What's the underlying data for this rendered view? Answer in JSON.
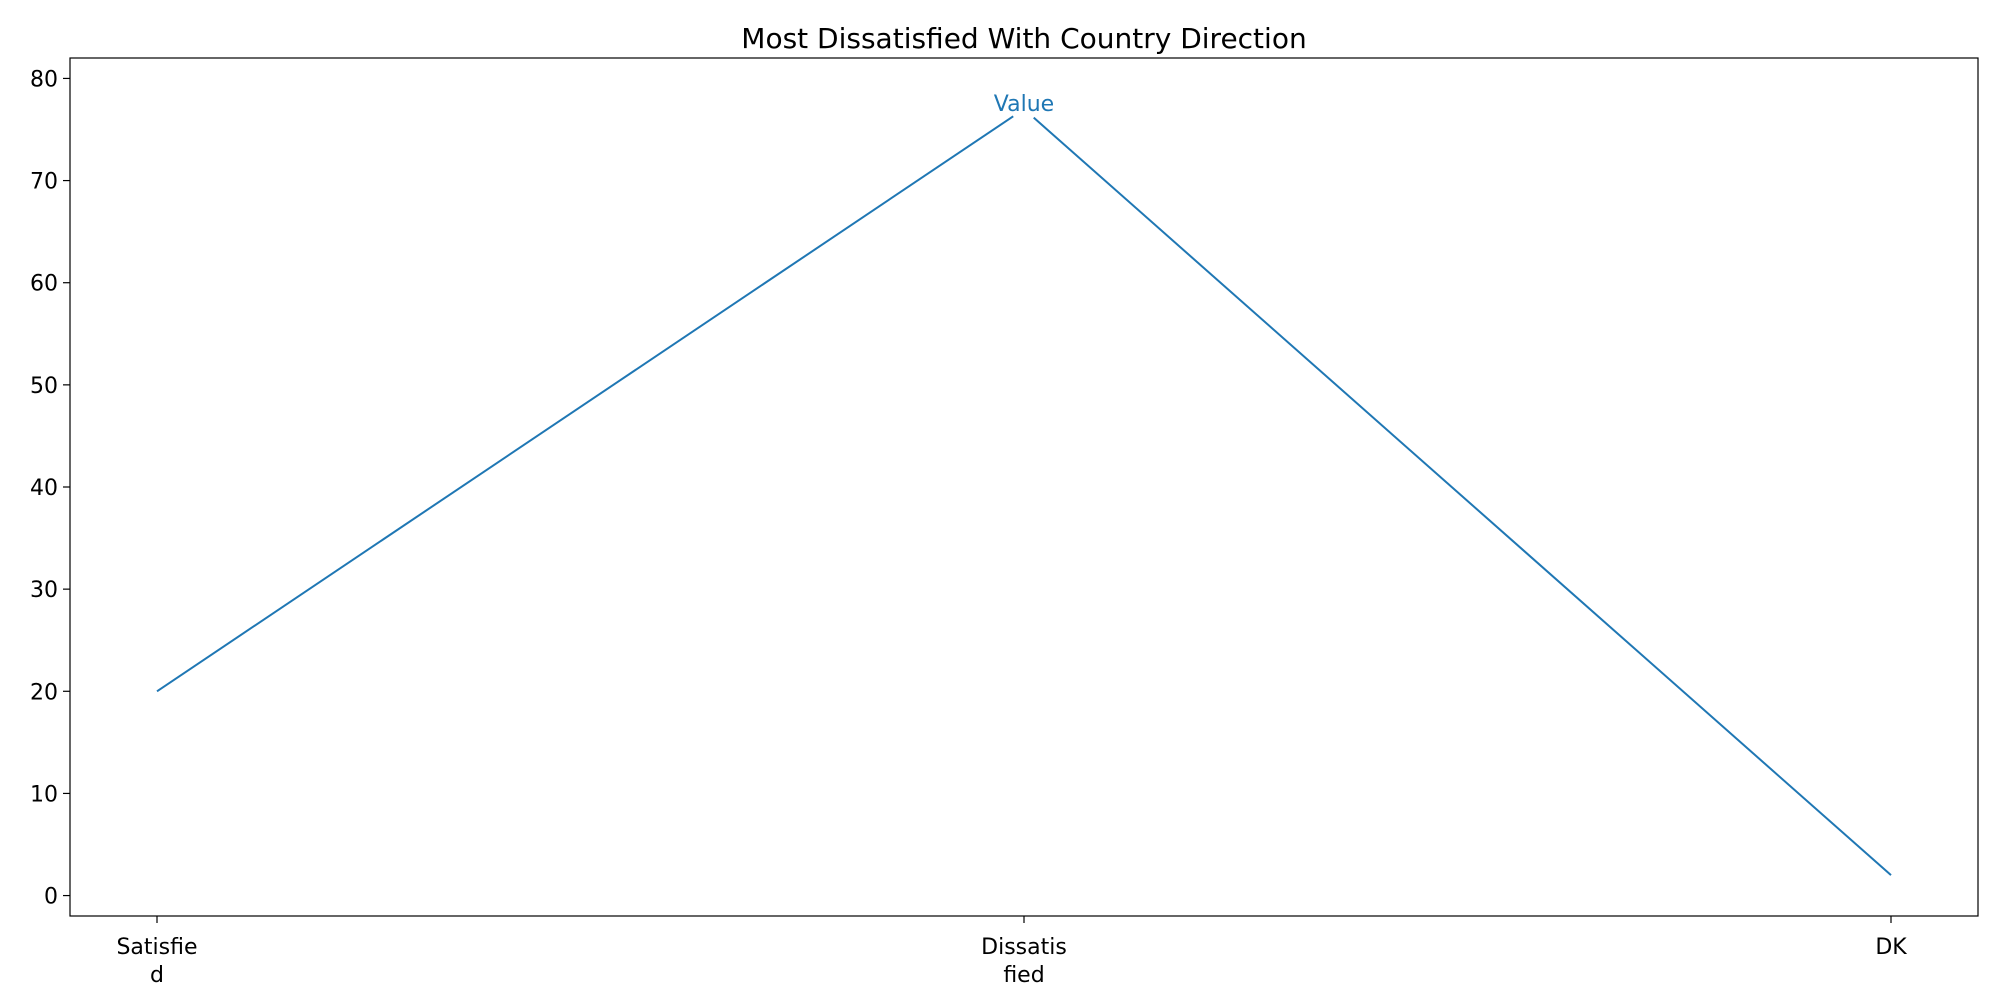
{
  "chart_data": {
    "type": "line",
    "title": "Most Dissatisfied With Country Direction",
    "xlabel": "",
    "ylabel": "",
    "categories": [
      [
        "Satisfie",
        "d"
      ],
      [
        "Dissatis",
        "fied"
      ],
      [
        "DK"
      ]
    ],
    "series": [
      {
        "name": "Value",
        "values": [
          20,
          77,
          2
        ],
        "color": "#1f77b4"
      }
    ],
    "ylim": [
      -2,
      82
    ],
    "yticks": [
      0,
      10,
      20,
      30,
      40,
      50,
      60,
      70,
      80
    ],
    "grid": false,
    "legend": "none"
  }
}
